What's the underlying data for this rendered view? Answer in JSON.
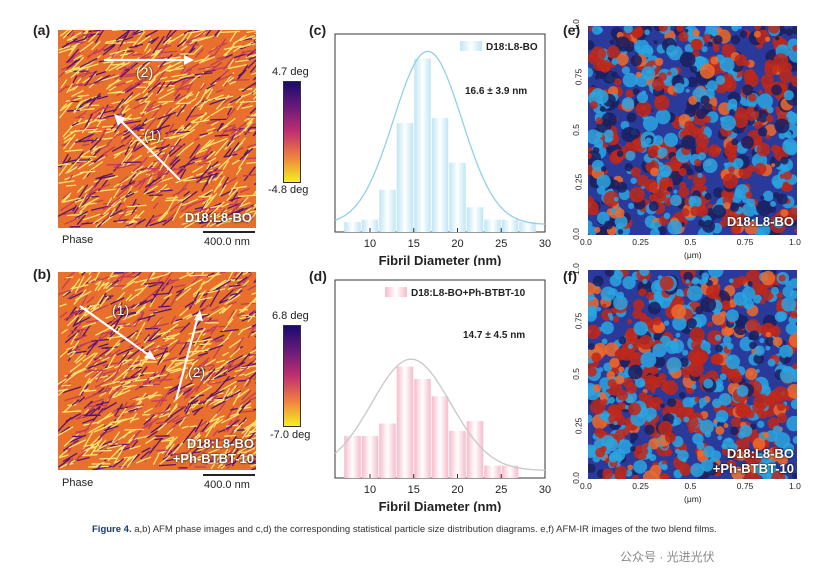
{
  "panels": {
    "a": {
      "label": "(a)",
      "sample": "D18:L8-BO",
      "phase": "Phase",
      "scale": "400.0 nm",
      "cb_top": "4.7 deg",
      "cb_bottom": "-4.8 deg",
      "arrow1": "(1)",
      "arrow2": "(2)"
    },
    "b": {
      "label": "(b)",
      "sample_line1": "D18:L8-BO",
      "sample_line2": "+Ph-BTBT-10",
      "phase": "Phase",
      "scale": "400.0 nm",
      "cb_top": "6.8 deg",
      "cb_bottom": "-7.0 deg",
      "arrow1": "(1)",
      "arrow2": "(2)"
    },
    "c": {
      "label": "(c)",
      "legend": "D18:L8-BO",
      "stat": "16.6 ± 3.9 nm",
      "xlabel": "Fibril Diameter (nm)"
    },
    "d": {
      "label": "(d)",
      "legend": "D18:L8-BO+Ph-BTBT-10",
      "stat": "14.7 ± 4.5 nm",
      "xlabel": "Fibril Diameter (nm)"
    },
    "e": {
      "label": "(e)",
      "sample": "D18:L8-BO",
      "xunit": "(μm)"
    },
    "f": {
      "label": "(f)",
      "sample_line1": "D18:L8-BO",
      "sample_line2": "+Ph-BTBT-10",
      "xunit": "(μm)"
    }
  },
  "ir_ticks": [
    "0.0",
    "0.25",
    "0.5",
    "0.75",
    "1.0"
  ],
  "caption": {
    "bold": "Figure 4.",
    "text": "a,b) AFM phase images and c,d) the corresponding statistical particle size distribution diagrams. e,f) AFM-IR images of the two blend films."
  },
  "watermark": "公众号 · 光进光伏",
  "colors": {
    "hist_c": "#bfe6f5",
    "curve_c": "#8fd1ea",
    "hist_d": "#f6bccb",
    "curve_d": "#c8c8c8",
    "afm_low": "#ffe36e",
    "afm_mid": "#e8602c",
    "afm_high": "#5a1470",
    "ir_blue": "#2aa4e0",
    "ir_red": "#c0281a"
  },
  "chart_data": [
    {
      "type": "bar",
      "panel": "c",
      "xlabel": "Fibril Diameter (nm)",
      "xlim": [
        6,
        30
      ],
      "xticks": [
        10,
        15,
        20,
        25,
        30
      ],
      "bin_centers": [
        8,
        10,
        12,
        14,
        16,
        18,
        20,
        22,
        24,
        26,
        28
      ],
      "values": [
        4,
        5,
        17,
        44,
        70,
        46,
        28,
        10,
        5,
        5,
        4
      ],
      "legend": "D18:L8-BO",
      "fit": {
        "mean": 16.6,
        "sd": 3.9
      }
    },
    {
      "type": "bar",
      "panel": "d",
      "xlabel": "Fibril Diameter (nm)",
      "xlim": [
        6,
        30
      ],
      "xticks": [
        10,
        15,
        20,
        25,
        30
      ],
      "bin_centers": [
        8,
        10,
        12,
        14,
        16,
        18,
        20,
        22,
        24,
        26
      ],
      "values": [
        17,
        17,
        22,
        45,
        40,
        33,
        19,
        23,
        5,
        5
      ],
      "legend": "D18:L8-BO+Ph-BTBT-10",
      "fit": {
        "mean": 14.7,
        "sd": 4.5
      }
    }
  ]
}
